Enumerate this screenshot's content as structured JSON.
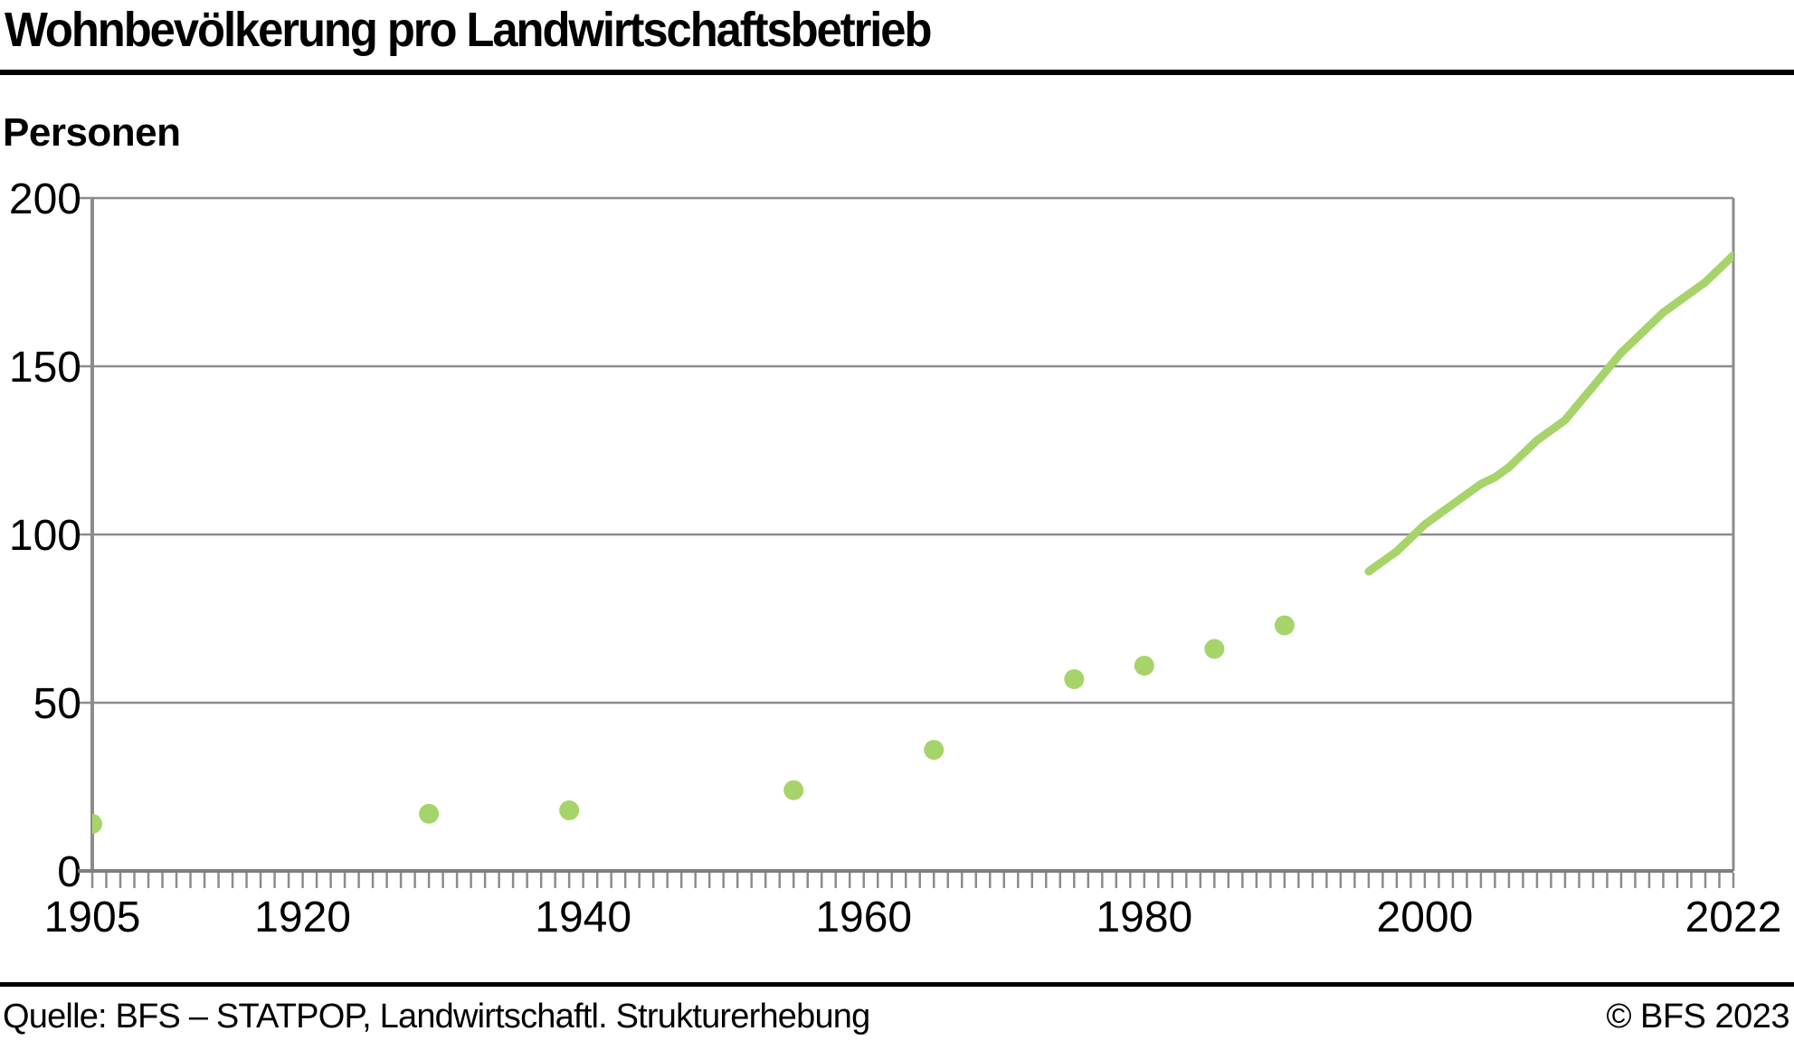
{
  "header": {
    "title": "Wohnbevölkerung pro Landwirtschaftsbetrieb"
  },
  "y_axis_title": "Personen",
  "footer": {
    "source": "Quelle: BFS – STATPOP, Landwirtschaftl. Strukturerhebung",
    "copyright": "© BFS 2023"
  },
  "colors": {
    "series_green": "#a6d46b",
    "grid_gray": "#8c8c8c",
    "axis_gray": "#7f7f7f",
    "text_black": "#000000",
    "rule_black": "#000000"
  },
  "chart_data": {
    "type": "scatter",
    "title": "Wohnbevölkerung pro Landwirtschaftsbetrieb",
    "xlabel": "",
    "ylabel": "Personen",
    "xlim": [
      1905,
      2022
    ],
    "ylim": [
      0,
      200
    ],
    "x_tick_labels": [
      1905,
      1920,
      1940,
      1960,
      1980,
      2000,
      2022
    ],
    "x_minor_tick_step_years": 1,
    "y_ticks": [
      0,
      50,
      100,
      150,
      200
    ],
    "grid": "horizontal",
    "legend": "none",
    "series": [
      {
        "name": "dots",
        "style": "scatter",
        "points": [
          [
            1905,
            14
          ],
          [
            1929,
            17
          ],
          [
            1939,
            18
          ],
          [
            1955,
            24
          ],
          [
            1965,
            36
          ],
          [
            1975,
            57
          ],
          [
            1980,
            61
          ],
          [
            1985,
            66
          ],
          [
            1990,
            73
          ]
        ]
      },
      {
        "name": "line",
        "style": "line",
        "points": [
          [
            1996,
            89
          ],
          [
            1997,
            92
          ],
          [
            1998,
            95
          ],
          [
            1999,
            99
          ],
          [
            2000,
            103
          ],
          [
            2001,
            106
          ],
          [
            2002,
            109
          ],
          [
            2003,
            112
          ],
          [
            2004,
            115
          ],
          [
            2005,
            117
          ],
          [
            2006,
            120
          ],
          [
            2007,
            124
          ],
          [
            2008,
            128
          ],
          [
            2009,
            131
          ],
          [
            2010,
            134
          ],
          [
            2011,
            139
          ],
          [
            2012,
            144
          ],
          [
            2013,
            149
          ],
          [
            2014,
            154
          ],
          [
            2015,
            158
          ],
          [
            2016,
            162
          ],
          [
            2017,
            166
          ],
          [
            2018,
            169
          ],
          [
            2019,
            172
          ],
          [
            2020,
            175
          ],
          [
            2021,
            179
          ],
          [
            2022,
            183
          ]
        ]
      }
    ]
  }
}
